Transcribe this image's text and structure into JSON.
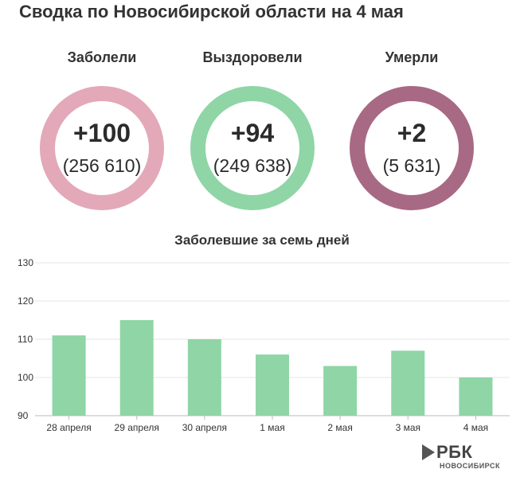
{
  "title": "Сводка по Новосибирской области на 4 мая",
  "stats": [
    {
      "label": "Заболели",
      "delta": "+100",
      "total": "(256 610)",
      "color": "#e3a9b8"
    },
    {
      "label": "Выздоровели",
      "delta": "+94",
      "total": "(249 638)",
      "color": "#8fd5a6"
    },
    {
      "label": "Умерли",
      "delta": "+2",
      "total": "(5 631)",
      "color": "#a86984"
    }
  ],
  "chart_data": {
    "type": "bar",
    "title": "Заболевшие за семь дней",
    "categories": [
      "28 апреля",
      "29 апреля",
      "30 апреля",
      "1 мая",
      "2 мая",
      "3 мая",
      "4 мая"
    ],
    "values": [
      111,
      115,
      110,
      106,
      103,
      107,
      100
    ],
    "ylim": [
      90,
      130
    ],
    "yticks": [
      90,
      100,
      110,
      120,
      130
    ],
    "grid": true,
    "bar_color": "#8fd5a6"
  },
  "logo": {
    "word": "РБК",
    "sub": "НОВОСИБИРСК"
  }
}
